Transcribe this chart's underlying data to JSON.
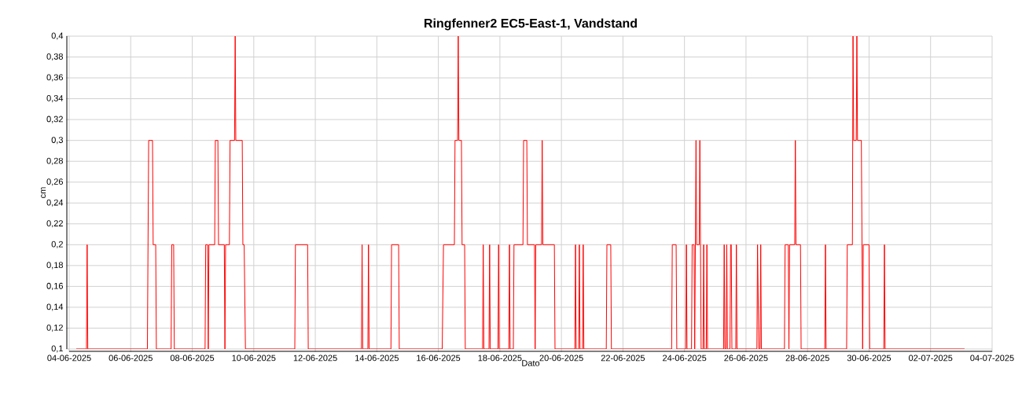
{
  "chart_data": {
    "type": "line",
    "title": "Ringfenner2 EC5-East-1, Vandstand",
    "xlabel": "Dato",
    "ylabel": "cm",
    "color": "#ff0000",
    "grid": true,
    "xlim": [
      "2025-06-04",
      "2025-07-04"
    ],
    "xticks": [
      {
        "value": "2025-06-04",
        "label": "04-06-2025"
      },
      {
        "value": "2025-06-06",
        "label": "06-06-2025"
      },
      {
        "value": "2025-06-08",
        "label": "08-06-2025"
      },
      {
        "value": "2025-06-10",
        "label": "10-06-2025"
      },
      {
        "value": "2025-06-12",
        "label": "12-06-2025"
      },
      {
        "value": "2025-06-14",
        "label": "14-06-2025"
      },
      {
        "value": "2025-06-16",
        "label": "16-06-2025"
      },
      {
        "value": "2025-06-18",
        "label": "18-06-2025"
      },
      {
        "value": "2025-06-20",
        "label": "20-06-2025"
      },
      {
        "value": "2025-06-22",
        "label": "22-06-2025"
      },
      {
        "value": "2025-06-24",
        "label": "24-06-2025"
      },
      {
        "value": "2025-06-26",
        "label": "26-06-2025"
      },
      {
        "value": "2025-06-28",
        "label": "28-06-2025"
      },
      {
        "value": "2025-06-30",
        "label": "30-06-2025"
      },
      {
        "value": "2025-07-02",
        "label": "02-07-2025"
      },
      {
        "value": "2025-07-04",
        "label": "04-07-2025"
      }
    ],
    "ylim": [
      0.1,
      0.4
    ],
    "yticks": [
      {
        "value": 0.1,
        "label": "0,1"
      },
      {
        "value": 0.12,
        "label": "0,12"
      },
      {
        "value": 0.14,
        "label": "0,14"
      },
      {
        "value": 0.16,
        "label": "0,16"
      },
      {
        "value": 0.18,
        "label": "0,18"
      },
      {
        "value": 0.2,
        "label": "0,2"
      },
      {
        "value": 0.22,
        "label": "0,22"
      },
      {
        "value": 0.24,
        "label": "0,24"
      },
      {
        "value": 0.26,
        "label": "0,26"
      },
      {
        "value": 0.28,
        "label": "0,28"
      },
      {
        "value": 0.3,
        "label": "0,3"
      },
      {
        "value": 0.32,
        "label": "0,32"
      },
      {
        "value": 0.34,
        "label": "0,34"
      },
      {
        "value": 0.36,
        "label": "0,36"
      },
      {
        "value": 0.38,
        "label": "0,38"
      },
      {
        "value": 0.4,
        "label": "0,4"
      }
    ],
    "x": [
      "2025-06-04T05:30",
      "2025-06-04T13:30",
      "2025-06-04T14:00",
      "2025-06-04T14:30",
      "2025-06-06T13:00",
      "2025-06-06T14:00",
      "2025-06-06T17:00",
      "2025-06-06T17:30",
      "2025-06-06T19:30",
      "2025-06-06T20:00",
      "2025-06-07T07:30",
      "2025-06-07T08:00",
      "2025-06-07T09:30",
      "2025-06-07T10:00",
      "2025-06-08T10:00",
      "2025-06-08T10:30",
      "2025-06-08T12:00",
      "2025-06-08T12:30",
      "2025-06-08T13:00",
      "2025-06-08T17:30",
      "2025-06-08T18:00",
      "2025-06-08T20:00",
      "2025-06-08T20:30",
      "2025-06-09T01:00",
      "2025-06-09T01:30",
      "2025-06-09T02:00",
      "2025-06-09T05:00",
      "2025-06-09T05:30",
      "2025-06-09T09:00",
      "2025-06-09T09:30",
      "2025-06-09T10:00",
      "2025-06-09T15:00",
      "2025-06-09T15:30",
      "2025-06-09T16:30",
      "2025-06-09T17:30",
      "2025-06-11T08:00",
      "2025-06-11T08:30",
      "2025-06-11T18:00",
      "2025-06-11T18:30",
      "2025-06-13T12:00",
      "2025-06-13T12:30",
      "2025-06-13T13:00",
      "2025-06-13T17:00",
      "2025-06-13T17:30",
      "2025-06-13T18:00",
      "2025-06-14T11:00",
      "2025-06-14T11:30",
      "2025-06-14T17:00",
      "2025-06-14T17:30",
      "2025-06-16T03:00",
      "2025-06-16T04:00",
      "2025-06-16T12:30",
      "2025-06-16T13:00",
      "2025-06-16T15:00",
      "2025-06-16T15:30",
      "2025-06-16T16:00",
      "2025-06-16T18:00",
      "2025-06-16T18:30",
      "2025-06-16T20:30",
      "2025-06-16T21:00",
      "2025-06-17T10:30",
      "2025-06-17T11:00",
      "2025-06-17T11:30",
      "2025-06-17T15:30",
      "2025-06-17T16:00",
      "2025-06-17T16:30",
      "2025-06-17T22:30",
      "2025-06-17T23:00",
      "2025-06-17T23:30",
      "2025-06-18T07:00",
      "2025-06-18T07:30",
      "2025-06-18T08:00",
      "2025-06-18T10:30",
      "2025-06-18T11:00",
      "2025-06-18T18:00",
      "2025-06-18T18:30",
      "2025-06-18T21:00",
      "2025-06-18T21:30",
      "2025-06-19T03:00",
      "2025-06-19T03:30",
      "2025-06-19T04:00",
      "2025-06-19T08:30",
      "2025-06-19T09:00",
      "2025-06-19T09:30",
      "2025-06-19T18:30",
      "2025-06-19T19:00",
      "2025-06-20T10:30",
      "2025-06-20T11:00",
      "2025-06-20T11:30",
      "2025-06-20T13:30",
      "2025-06-20T14:00",
      "2025-06-20T14:30",
      "2025-06-20T16:30",
      "2025-06-20T17:00",
      "2025-06-20T17:30",
      "2025-06-21T11:00",
      "2025-06-21T11:30",
      "2025-06-21T14:30",
      "2025-06-21T15:00",
      "2025-06-23T14:00",
      "2025-06-23T14:30",
      "2025-06-23T17:30",
      "2025-06-23T18:00",
      "2025-06-24T01:00",
      "2025-06-24T01:30",
      "2025-06-24T02:00",
      "2025-06-24T05:30",
      "2025-06-24T06:00",
      "2025-06-24T07:30",
      "2025-06-24T08:00",
      "2025-06-24T08:30",
      "2025-06-24T09:00",
      "2025-06-24T09:30",
      "2025-06-24T11:30",
      "2025-06-24T12:00",
      "2025-06-24T12:30",
      "2025-06-24T13:00",
      "2025-06-24T14:30",
      "2025-06-24T15:00",
      "2025-06-24T15:30",
      "2025-06-24T17:00",
      "2025-06-24T17:30",
      "2025-06-24T18:00",
      "2025-06-25T06:30",
      "2025-06-25T07:00",
      "2025-06-25T07:30",
      "2025-06-25T08:30",
      "2025-06-25T09:00",
      "2025-06-25T09:30",
      "2025-06-25T11:30",
      "2025-06-25T12:00",
      "2025-06-25T12:30",
      "2025-06-25T13:00",
      "2025-06-25T16:00",
      "2025-06-25T16:30",
      "2025-06-25T17:00",
      "2025-06-26T08:30",
      "2025-06-26T09:00",
      "2025-06-26T10:00",
      "2025-06-26T11:00",
      "2025-06-26T11:30",
      "2025-06-26T12:00",
      "2025-06-27T06:00",
      "2025-06-27T06:30",
      "2025-06-27T09:00",
      "2025-06-27T09:30",
      "2025-06-27T10:00",
      "2025-06-27T14:00",
      "2025-06-27T14:30",
      "2025-06-27T15:00",
      "2025-06-27T18:30",
      "2025-06-27T19:00",
      "2025-06-28T13:30",
      "2025-06-28T14:00",
      "2025-06-28T14:30",
      "2025-06-29T06:30",
      "2025-06-29T07:00",
      "2025-06-29T11:00",
      "2025-06-29T11:30",
      "2025-06-29T12:00",
      "2025-06-29T14:00",
      "2025-06-29T14:30",
      "2025-06-29T15:00",
      "2025-06-29T18:00",
      "2025-06-29T18:30",
      "2025-06-29T19:00",
      "2025-06-29T19:30",
      "2025-06-30T00:00",
      "2025-06-30T00:30",
      "2025-06-30T11:30",
      "2025-06-30T12:00",
      "2025-06-30T12:30",
      "2025-07-03T02:30"
    ],
    "values": [
      0.1,
      0.1,
      0.2,
      0.1,
      0.1,
      0.3,
      0.3,
      0.2,
      0.2,
      0.1,
      0.1,
      0.2,
      0.2,
      0.1,
      0.1,
      0.2,
      0.2,
      0.1,
      0.2,
      0.2,
      0.3,
      0.3,
      0.2,
      0.2,
      0.1,
      0.2,
      0.2,
      0.3,
      0.3,
      0.4,
      0.3,
      0.3,
      0.2,
      0.2,
      0.1,
      0.1,
      0.2,
      0.2,
      0.1,
      0.1,
      0.2,
      0.1,
      0.1,
      0.2,
      0.1,
      0.1,
      0.2,
      0.2,
      0.1,
      0.1,
      0.2,
      0.2,
      0.3,
      0.3,
      0.4,
      0.3,
      0.3,
      0.2,
      0.2,
      0.1,
      0.1,
      0.2,
      0.1,
      0.1,
      0.2,
      0.1,
      0.1,
      0.2,
      0.1,
      0.1,
      0.2,
      0.1,
      0.1,
      0.2,
      0.2,
      0.3,
      0.3,
      0.2,
      0.2,
      0.1,
      0.2,
      0.2,
      0.3,
      0.2,
      0.2,
      0.1,
      0.1,
      0.2,
      0.1,
      0.1,
      0.2,
      0.1,
      0.1,
      0.2,
      0.1,
      0.1,
      0.2,
      0.2,
      0.1,
      0.1,
      0.2,
      0.2,
      0.1,
      0.1,
      0.2,
      0.1,
      0.1,
      0.2,
      0.2,
      0.1,
      0.2,
      0.3,
      0.2,
      0.2,
      0.3,
      0.2,
      0.1,
      0.1,
      0.2,
      0.1,
      0.1,
      0.2,
      0.1,
      0.1,
      0.2,
      0.1,
      0.1,
      0.2,
      0.1,
      0.1,
      0.2,
      0.2,
      0.1,
      0.1,
      0.2,
      0.1,
      0.1,
      0.2,
      0.1,
      0.1,
      0.2,
      0.1,
      0.1,
      0.2,
      0.2,
      0.1,
      0.2,
      0.2,
      0.3,
      0.2,
      0.2,
      0.1,
      0.1,
      0.2,
      0.1,
      0.1,
      0.2,
      0.2,
      0.4,
      0.3,
      0.3,
      0.4,
      0.3,
      0.3,
      0.2,
      0.1,
      0.2,
      0.2,
      0.1,
      0.1,
      0.2,
      0.1,
      0.1
    ]
  }
}
